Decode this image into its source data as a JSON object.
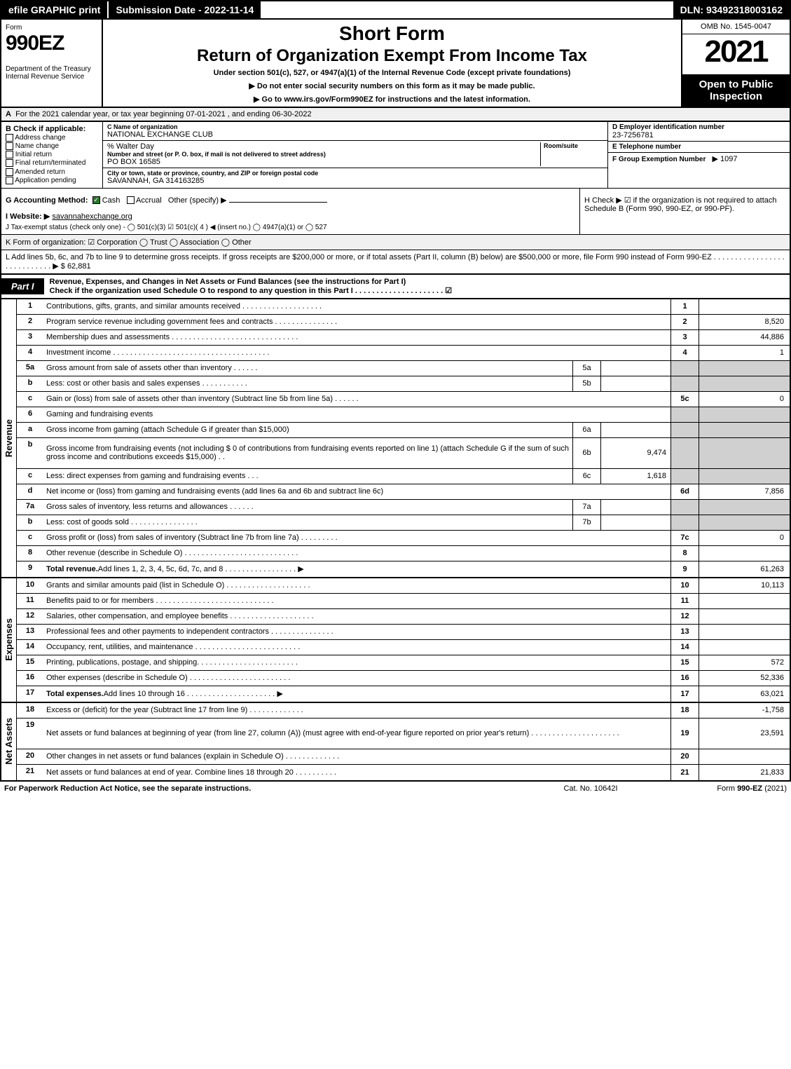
{
  "topbar": {
    "efile": "efile GRAPHIC print",
    "subdate": "Submission Date - 2022-11-14",
    "dln": "DLN: 93492318003162"
  },
  "header": {
    "form_word": "Form",
    "form_num": "990EZ",
    "dept": "Department of the Treasury\nInternal Revenue Service",
    "short": "Short Form",
    "title": "Return of Organization Exempt From Income Tax",
    "under": "Under section 501(c), 527, or 4947(a)(1) of the Internal Revenue Code (except private foundations)",
    "note1": "▶ Do not enter social security numbers on this form as it may be made public.",
    "note2": "▶ Go to www.irs.gov/Form990EZ for instructions and the latest information.",
    "omb": "OMB No. 1545-0047",
    "year": "2021",
    "open": "Open to Public Inspection"
  },
  "row_a": "For the 2021 calendar year, or tax year beginning 07-01-2021 , and ending 06-30-2022",
  "section_b": {
    "hdr": "B  Check if applicable:",
    "items": [
      "Address change",
      "Name change",
      "Initial return",
      "Final return/terminated",
      "Amended return",
      "Application pending"
    ]
  },
  "section_c": {
    "c_label": "C Name of organization",
    "c_name": "NATIONAL EXCHANGE CLUB",
    "care_of": "% Walter Day",
    "addr_label": "Number and street (or P. O. box, if mail is not delivered to street address)",
    "addr": "PO BOX 16585",
    "room_label": "Room/suite",
    "city_label": "City or town, state or province, country, and ZIP or foreign postal code",
    "city": "SAVANNAH, GA  314163285"
  },
  "section_d": {
    "d_label": "D Employer identification number",
    "d_val": "23-7256781",
    "e_label": "E Telephone number",
    "e_val": "",
    "f_label": "F Group Exemption Number",
    "f_val": "▶ 1097"
  },
  "row_g": {
    "label": "G Accounting Method:",
    "cash": "Cash",
    "accrual": "Accrual",
    "other": "Other (specify) ▶"
  },
  "row_h": "H   Check ▶ ☑ if the organization is not required to attach Schedule B (Form 990, 990-EZ, or 990-PF).",
  "row_i": {
    "label": "I Website: ▶",
    "val": "savannahexchange.org"
  },
  "row_j": "J Tax-exempt status (check only one) - ◯ 501(c)(3)  ☑ 501(c)( 4 ) ◀ (insert no.)  ◯ 4947(a)(1) or  ◯ 527",
  "row_k": "K Form of organization:  ☑ Corporation  ◯ Trust  ◯ Association  ◯ Other",
  "row_l": {
    "text": "L Add lines 5b, 6c, and 7b to line 9 to determine gross receipts. If gross receipts are $200,000 or more, or if total assets (Part II, column (B) below) are $500,000 or more, file Form 990 instead of Form 990-EZ . . . . . . . . . . . . . . . . . . . . . . . . . . . . ▶ $",
    "amount": "62,881"
  },
  "part1": {
    "tab": "Part I",
    "desc": "Revenue, Expenses, and Changes in Net Assets or Fund Balances (see the instructions for Part I)\nCheck if the organization used Schedule O to respond to any question in this Part I . . . . . . . . . . . . . . . . . . . . . ☑"
  },
  "revenue": {
    "side": "Revenue",
    "rows": [
      {
        "no": "1",
        "desc": "Contributions, gifts, grants, and similar amounts received . . . . . . . . . . . . . . . . . . .",
        "col": "1",
        "amt": ""
      },
      {
        "no": "2",
        "desc": "Program service revenue including government fees and contracts . . . . . . . . . . . . . . .",
        "col": "2",
        "amt": "8,520"
      },
      {
        "no": "3",
        "desc": "Membership dues and assessments . . . . . . . . . . . . . . . . . . . . . . . . . . . . . .",
        "col": "3",
        "amt": "44,886"
      },
      {
        "no": "4",
        "desc": "Investment income . . . . . . . . . . . . . . . . . . . . . . . . . . . . . . . . . . . . .",
        "col": "4",
        "amt": "1"
      },
      {
        "no": "5a",
        "desc": "Gross amount from sale of assets other than inventory . . . . . .",
        "sub": "5a",
        "subval": "",
        "shade": true
      },
      {
        "no": "b",
        "desc": "Less: cost or other basis and sales expenses . . . . . . . . . . .",
        "sub": "5b",
        "subval": "",
        "shade": true
      },
      {
        "no": "c",
        "desc": "Gain or (loss) from sale of assets other than inventory (Subtract line 5b from line 5a) . . . . . .",
        "col": "5c",
        "amt": "0"
      },
      {
        "no": "6",
        "desc": "Gaming and fundraising events",
        "shade": true,
        "nosub": true
      },
      {
        "no": "a",
        "desc": "Gross income from gaming (attach Schedule G if greater than $15,000)",
        "sub": "6a",
        "subval": "",
        "shade": true
      },
      {
        "no": "b",
        "desc": "Gross income from fundraising events (not including $ 0            of contributions from fundraising events reported on line 1) (attach Schedule G if the sum of such gross income and contributions exceeds $15,000)   . .",
        "sub": "6b",
        "subval": "9,474",
        "shade": true,
        "tall": true
      },
      {
        "no": "c",
        "desc": "Less: direct expenses from gaming and fundraising events      . . .",
        "sub": "6c",
        "subval": "1,618",
        "shade": true
      },
      {
        "no": "d",
        "desc": "Net income or (loss) from gaming and fundraising events (add lines 6a and 6b and subtract line 6c)",
        "col": "6d",
        "amt": "7,856"
      },
      {
        "no": "7a",
        "desc": "Gross sales of inventory, less returns and allowances . . . . . .",
        "sub": "7a",
        "subval": "",
        "shade": true
      },
      {
        "no": "b",
        "desc": "Less: cost of goods sold       . . . . . . . . . . . . . . . .",
        "sub": "7b",
        "subval": "",
        "shade": true
      },
      {
        "no": "c",
        "desc": "Gross profit or (loss) from sales of inventory (Subtract line 7b from line 7a) . . . . . . . . .",
        "col": "7c",
        "amt": "0"
      },
      {
        "no": "8",
        "desc": "Other revenue (describe in Schedule O) . . . . . . . . . . . . . . . . . . . . . . . . . . .",
        "col": "8",
        "amt": ""
      },
      {
        "no": "9",
        "desc": "Total revenue. Add lines 1, 2, 3, 4, 5c, 6d, 7c, and 8 . . . . . . . . . . . . . . . . .    ▶",
        "col": "9",
        "amt": "61,263",
        "bold": true
      }
    ]
  },
  "expenses": {
    "side": "Expenses",
    "rows": [
      {
        "no": "10",
        "desc": "Grants and similar amounts paid (list in Schedule O) . . . . . . . . . . . . . . . . . . . .",
        "col": "10",
        "amt": "10,113"
      },
      {
        "no": "11",
        "desc": "Benefits paid to or for members     . . . . . . . . . . . . . . . . . . . . . . . . . . . .",
        "col": "11",
        "amt": ""
      },
      {
        "no": "12",
        "desc": "Salaries, other compensation, and employee benefits . . . . . . . . . . . . . . . . . . . .",
        "col": "12",
        "amt": ""
      },
      {
        "no": "13",
        "desc": "Professional fees and other payments to independent contractors . . . . . . . . . . . . . . .",
        "col": "13",
        "amt": ""
      },
      {
        "no": "14",
        "desc": "Occupancy, rent, utilities, and maintenance . . . . . . . . . . . . . . . . . . . . . . . . .",
        "col": "14",
        "amt": ""
      },
      {
        "no": "15",
        "desc": "Printing, publications, postage, and shipping. . . . . . . . . . . . . . . . . . . . . . . .",
        "col": "15",
        "amt": "572"
      },
      {
        "no": "16",
        "desc": "Other expenses (describe in Schedule O)     . . . . . . . . . . . . . . . . . . . . . . . .",
        "col": "16",
        "amt": "52,336"
      },
      {
        "no": "17",
        "desc": "Total expenses. Add lines 10 through 16     . . . . . . . . . . . . . . . . . . . . .    ▶",
        "col": "17",
        "amt": "63,021",
        "bold": true
      }
    ]
  },
  "netassets": {
    "side": "Net Assets",
    "rows": [
      {
        "no": "18",
        "desc": "Excess or (deficit) for the year (Subtract line 17 from line 9)       . . . . . . . . . . . . .",
        "col": "18",
        "amt": "-1,758"
      },
      {
        "no": "19",
        "desc": "Net assets or fund balances at beginning of year (from line 27, column (A)) (must agree with end-of-year figure reported on prior year's return) . . . . . . . . . . . . . . . . . . . . .",
        "col": "19",
        "amt": "23,591",
        "tall": true
      },
      {
        "no": "20",
        "desc": "Other changes in net assets or fund balances (explain in Schedule O) . . . . . . . . . . . . .",
        "col": "20",
        "amt": ""
      },
      {
        "no": "21",
        "desc": "Net assets or fund balances at end of year. Combine lines 18 through 20 . . . . . . . . . .",
        "col": "21",
        "amt": "21,833"
      }
    ]
  },
  "footer": {
    "left": "For Paperwork Reduction Act Notice, see the separate instructions.",
    "mid": "Cat. No. 10642I",
    "right": "Form 990-EZ (2021)"
  },
  "colors": {
    "black": "#000000",
    "white": "#ffffff",
    "shade": "#d0d0d0",
    "lightgray": "#f0f0f0",
    "checkgreen": "#2a7a2a"
  }
}
